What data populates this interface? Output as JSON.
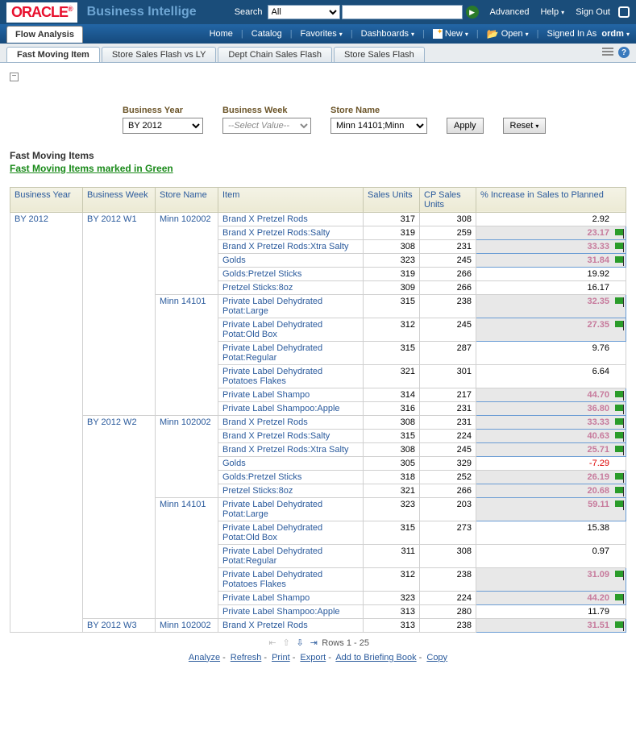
{
  "header": {
    "logo": "ORACLE",
    "app_title": "Business Intellige",
    "search_label": "Search",
    "search_scope": "All",
    "advanced": "Advanced",
    "help": "Help",
    "signout": "Sign Out"
  },
  "menubar": {
    "flow_tab": "Flow Analysis",
    "home": "Home",
    "catalog": "Catalog",
    "favorites": "Favorites",
    "dashboards": "Dashboards",
    "new": "New",
    "open": "Open",
    "signed_prefix": "Signed In As",
    "signed_user": "ordm"
  },
  "subtabs": {
    "t1": "Fast Moving Item",
    "t2": "Store Sales Flash vs LY",
    "t3": "Dept Chain Sales Flash",
    "t4": "Store Sales Flash"
  },
  "prompts": {
    "by_label": "Business Year",
    "by_value": "BY 2012",
    "bw_label": "Business Week",
    "bw_placeholder": "--Select Value--",
    "sn_label": "Store Name",
    "sn_value": "Minn 14101;Minn",
    "apply": "Apply",
    "reset": "Reset"
  },
  "section": {
    "title": "Fast Moving Items",
    "subtitle": "Fast Moving Items marked in Green"
  },
  "columns": {
    "c1": "Business Year",
    "c2": "Business Week",
    "c3": "Store Name",
    "c4": "Item",
    "c5": "Sales Units",
    "c6": "CP Sales Units",
    "c7": "% Increase in Sales to Planned"
  },
  "data": {
    "by": "BY 2012",
    "weeks": [
      {
        "week": "BY 2012 W1",
        "stores": [
          {
            "store": "Minn 102002",
            "rows": [
              {
                "item": "Brand X Pretzel Rods",
                "su": "317",
                "cp": "308",
                "pct": "2.92",
                "hl": false
              },
              {
                "item": "Brand X Pretzel Rods:Salty",
                "su": "319",
                "cp": "259",
                "pct": "23.17",
                "hl": true
              },
              {
                "item": "Brand X Pretzel Rods:Xtra Salty",
                "su": "308",
                "cp": "231",
                "pct": "33.33",
                "hl": true
              },
              {
                "item": "Golds",
                "su": "323",
                "cp": "245",
                "pct": "31.84",
                "hl": true
              },
              {
                "item": "Golds:Pretzel Sticks",
                "su": "319",
                "cp": "266",
                "pct": "19.92",
                "hl": false
              },
              {
                "item": "Pretzel Sticks:8oz",
                "su": "309",
                "cp": "266",
                "pct": "16.17",
                "hl": false
              }
            ]
          },
          {
            "store": "Minn 14101",
            "rows": [
              {
                "item": "Private Label Dehydrated Potat:Large",
                "su": "315",
                "cp": "238",
                "pct": "32.35",
                "hl": true
              },
              {
                "item": "Private Label Dehydrated Potat:Old Box",
                "su": "312",
                "cp": "245",
                "pct": "27.35",
                "hl": true
              },
              {
                "item": "Private Label Dehydrated Potat:Regular",
                "su": "315",
                "cp": "287",
                "pct": "9.76",
                "hl": false
              },
              {
                "item": "Private Label Dehydrated Potatoes Flakes",
                "su": "321",
                "cp": "301",
                "pct": "6.64",
                "hl": false
              },
              {
                "item": "Private Label Shampo",
                "su": "314",
                "cp": "217",
                "pct": "44.70",
                "hl": true
              },
              {
                "item": "Private Label Shampoo:Apple",
                "su": "316",
                "cp": "231",
                "pct": "36.80",
                "hl": true
              }
            ]
          }
        ]
      },
      {
        "week": "BY 2012 W2",
        "stores": [
          {
            "store": "Minn 102002",
            "rows": [
              {
                "item": "Brand X Pretzel Rods",
                "su": "308",
                "cp": "231",
                "pct": "33.33",
                "hl": true
              },
              {
                "item": "Brand X Pretzel Rods:Salty",
                "su": "315",
                "cp": "224",
                "pct": "40.63",
                "hl": true
              },
              {
                "item": "Brand X Pretzel Rods:Xtra Salty",
                "su": "308",
                "cp": "245",
                "pct": "25.71",
                "hl": true
              },
              {
                "item": "Golds",
                "su": "305",
                "cp": "329",
                "pct": "-7.29",
                "hl": false,
                "neg": true
              },
              {
                "item": "Golds:Pretzel Sticks",
                "su": "318",
                "cp": "252",
                "pct": "26.19",
                "hl": true
              },
              {
                "item": "Pretzel Sticks:8oz",
                "su": "321",
                "cp": "266",
                "pct": "20.68",
                "hl": true
              }
            ]
          },
          {
            "store": "Minn 14101",
            "rows": [
              {
                "item": "Private Label Dehydrated Potat:Large",
                "su": "323",
                "cp": "203",
                "pct": "59.11",
                "hl": true
              },
              {
                "item": "Private Label Dehydrated Potat:Old Box",
                "su": "315",
                "cp": "273",
                "pct": "15.38",
                "hl": false
              },
              {
                "item": "Private Label Dehydrated Potat:Regular",
                "su": "311",
                "cp": "308",
                "pct": "0.97",
                "hl": false
              },
              {
                "item": "Private Label Dehydrated Potatoes Flakes",
                "su": "312",
                "cp": "238",
                "pct": "31.09",
                "hl": true
              },
              {
                "item": "Private Label Shampo",
                "su": "323",
                "cp": "224",
                "pct": "44.20",
                "hl": true
              },
              {
                "item": "Private Label Shampoo:Apple",
                "su": "313",
                "cp": "280",
                "pct": "11.79",
                "hl": false
              }
            ]
          }
        ]
      },
      {
        "week": "BY 2012 W3",
        "stores": [
          {
            "store": "Minn 102002",
            "rows": [
              {
                "item": "Brand X Pretzel Rods",
                "su": "313",
                "cp": "238",
                "pct": "31.51",
                "hl": true
              }
            ]
          }
        ]
      }
    ]
  },
  "pager": {
    "text": "Rows 1 - 25"
  },
  "footer": {
    "analyze": "Analyze",
    "refresh": "Refresh",
    "print": "Print",
    "export": "Export",
    "brief": "Add to Briefing Book",
    "copy": "Copy"
  }
}
